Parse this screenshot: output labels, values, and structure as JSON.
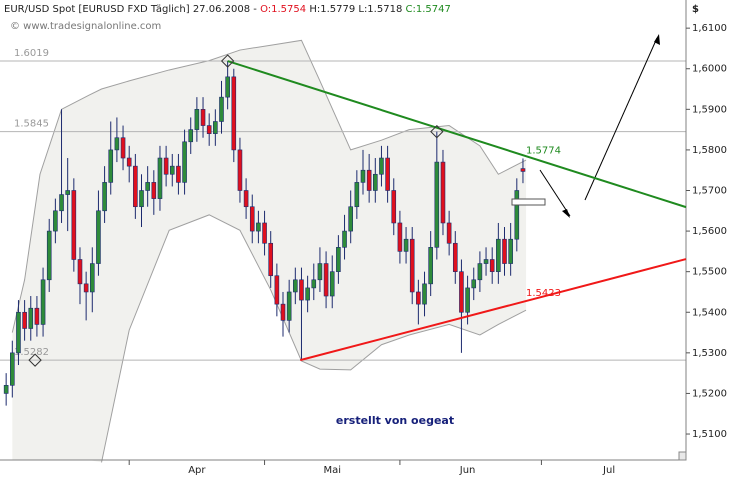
{
  "chart_data": {
    "type": "candlestick",
    "title": {
      "text": "EUR/USD Spot [EURUSD FXD  Täglich] 27.06.2008 -",
      "open": "O:1.5754",
      "high_low": "H:1.5779 L:1.5718",
      "close": "C:1.5747"
    },
    "watermark": "© www.tradesignalonline.com",
    "currency": "$",
    "note": "erstellt von oegeat",
    "up_color": "#2e8b3a",
    "down_color": "#e0101e",
    "wick_color": "#1c2a6e",
    "open": [
      1.52,
      1.522,
      1.53,
      1.54,
      1.536,
      1.541,
      1.537,
      1.548,
      1.56,
      1.565,
      1.569,
      1.57,
      1.553,
      1.547,
      1.545,
      1.552,
      1.565,
      1.572,
      1.58,
      1.583,
      1.578,
      1.576,
      1.566,
      1.57,
      1.572,
      1.568,
      1.578,
      1.574,
      1.576,
      1.572,
      1.582,
      1.585,
      1.59,
      1.586,
      1.584,
      1.587,
      1.593,
      1.598,
      1.58,
      1.57,
      1.566,
      1.56,
      1.562,
      1.557,
      1.549,
      1.542,
      1.538,
      1.545,
      1.548,
      1.543,
      1.546,
      1.548,
      1.552,
      1.544,
      1.55,
      1.556,
      1.56,
      1.566,
      1.572,
      1.575,
      1.57,
      1.574,
      1.578,
      1.57,
      1.562,
      1.555,
      1.558,
      1.545,
      1.542,
      1.547,
      1.556,
      1.577,
      1.562,
      1.557,
      1.55,
      1.54,
      1.546,
      1.548,
      1.552,
      1.553,
      1.55,
      1.558,
      1.552,
      1.558,
      1.5754
    ],
    "high": [
      1.525,
      1.533,
      1.543,
      1.543,
      1.544,
      1.544,
      1.551,
      1.563,
      1.568,
      1.59,
      1.578,
      1.573,
      1.556,
      1.55,
      1.556,
      1.57,
      1.576,
      1.587,
      1.588,
      1.586,
      1.581,
      1.579,
      1.574,
      1.576,
      1.575,
      1.581,
      1.581,
      1.579,
      1.579,
      1.585,
      1.588,
      1.593,
      1.593,
      1.589,
      1.59,
      1.597,
      1.6019,
      1.6,
      1.583,
      1.573,
      1.569,
      1.565,
      1.565,
      1.56,
      1.552,
      1.545,
      1.548,
      1.551,
      1.551,
      1.549,
      1.552,
      1.556,
      1.555,
      1.554,
      1.559,
      1.564,
      1.57,
      1.575,
      1.58,
      1.579,
      1.578,
      1.581,
      1.581,
      1.573,
      1.565,
      1.561,
      1.561,
      1.548,
      1.55,
      1.56,
      1.5845,
      1.58,
      1.565,
      1.56,
      1.553,
      1.549,
      1.551,
      1.555,
      1.556,
      1.556,
      1.562,
      1.561,
      1.562,
      1.573,
      1.5779
    ],
    "low": [
      1.517,
      1.519,
      1.527,
      1.533,
      1.533,
      1.534,
      1.534,
      1.545,
      1.557,
      1.562,
      1.56,
      1.55,
      1.542,
      1.538,
      1.54,
      1.549,
      1.562,
      1.569,
      1.577,
      1.575,
      1.572,
      1.563,
      1.561,
      1.566,
      1.564,
      1.565,
      1.571,
      1.571,
      1.569,
      1.569,
      1.579,
      1.582,
      1.583,
      1.581,
      1.581,
      1.584,
      1.59,
      1.577,
      1.567,
      1.563,
      1.557,
      1.557,
      1.554,
      1.546,
      1.539,
      1.534,
      1.535,
      1.542,
      1.5282,
      1.54,
      1.543,
      1.545,
      1.541,
      1.541,
      1.547,
      1.553,
      1.557,
      1.563,
      1.569,
      1.567,
      1.567,
      1.571,
      1.567,
      1.559,
      1.552,
      1.552,
      1.542,
      1.537,
      1.539,
      1.544,
      1.553,
      1.559,
      1.554,
      1.547,
      1.53,
      1.537,
      1.543,
      1.545,
      1.549,
      1.547,
      1.547,
      1.549,
      1.549,
      1.555,
      1.5718
    ],
    "close": [
      1.522,
      1.53,
      1.54,
      1.536,
      1.541,
      1.537,
      1.548,
      1.56,
      1.565,
      1.569,
      1.57,
      1.553,
      1.547,
      1.545,
      1.552,
      1.565,
      1.572,
      1.58,
      1.583,
      1.578,
      1.576,
      1.566,
      1.57,
      1.572,
      1.568,
      1.578,
      1.574,
      1.576,
      1.572,
      1.582,
      1.585,
      1.59,
      1.586,
      1.584,
      1.587,
      1.593,
      1.598,
      1.58,
      1.57,
      1.566,
      1.56,
      1.562,
      1.557,
      1.549,
      1.542,
      1.538,
      1.545,
      1.548,
      1.543,
      1.546,
      1.548,
      1.552,
      1.544,
      1.55,
      1.556,
      1.56,
      1.566,
      1.572,
      1.575,
      1.57,
      1.574,
      1.578,
      1.57,
      1.562,
      1.555,
      1.558,
      1.545,
      1.542,
      1.547,
      1.556,
      1.577,
      1.562,
      1.557,
      1.55,
      1.54,
      1.546,
      1.548,
      1.552,
      1.553,
      1.55,
      1.558,
      1.552,
      1.558,
      1.57,
      1.5747
    ],
    "bollinger": {
      "x": [
        1,
        3,
        5.5,
        9,
        13.5,
        15.5,
        20,
        26.5,
        33,
        38,
        43,
        48,
        51,
        56,
        61,
        65.5,
        72,
        77,
        80,
        84.5
      ],
      "upper": [
        1.535,
        1.548,
        1.574,
        1.59,
        1.5935,
        1.595,
        1.597,
        1.5997,
        1.602,
        1.6046,
        1.6058,
        1.607,
        1.597,
        1.58,
        1.5824,
        1.585,
        1.586,
        1.581,
        1.574,
        1.5775
      ],
      "lower": [
        null,
        null,
        null,
        null,
        null,
        1.503,
        1.5356,
        1.5602,
        1.564,
        1.5602,
        1.5455,
        1.528,
        1.526,
        1.5258,
        1.532,
        1.5344,
        1.537,
        1.5344,
        1.537,
        1.5405
      ]
    },
    "levels": [
      1.6019,
      1.5845,
      1.5282
    ],
    "trendlines": [
      {
        "color": "#1f8a1f",
        "x": [
          36,
          110.5
        ],
        "y": [
          1.6019,
          1.5659
        ]
      },
      {
        "color": "#f01818",
        "x": [
          47.8,
          110.5
        ],
        "y": [
          1.5282,
          1.5531
        ]
      }
    ],
    "price_labels": [
      {
        "value": 1.5774,
        "color": "#1f8a1f"
      },
      {
        "value": 1.5423,
        "color": "#f01818"
      }
    ],
    "markers": {
      "x": [
        4.7,
        36,
        70
      ],
      "y": [
        1.5282,
        1.6019,
        1.5845
      ]
    },
    "xlim": [
      -1,
      110.5
    ],
    "xticks": [
      {
        "value": 31,
        "label": "Apr"
      },
      {
        "value": 53,
        "label": "Mai"
      },
      {
        "value": 75,
        "label": "Jun"
      },
      {
        "value": 98,
        "label": "Jul"
      }
    ],
    "month_starts": [
      20,
      42,
      64,
      87
    ],
    "ylim": [
      1.5036,
      1.6125
    ],
    "yticks": [
      {
        "value": 1.51,
        "label": "1,5100"
      },
      {
        "value": 1.52,
        "label": "1,5200"
      },
      {
        "value": 1.53,
        "label": "1,5300"
      },
      {
        "value": 1.54,
        "label": "1,5400"
      },
      {
        "value": 1.55,
        "label": "1,5500"
      },
      {
        "value": 1.56,
        "label": "1,5600"
      },
      {
        "value": 1.57,
        "label": "1,5700"
      },
      {
        "value": 1.58,
        "label": "1,5800"
      },
      {
        "value": 1.59,
        "label": "1,5900"
      },
      {
        "value": 1.6,
        "label": "1,6000"
      },
      {
        "value": 1.61,
        "label": "1,6100"
      }
    ]
  }
}
